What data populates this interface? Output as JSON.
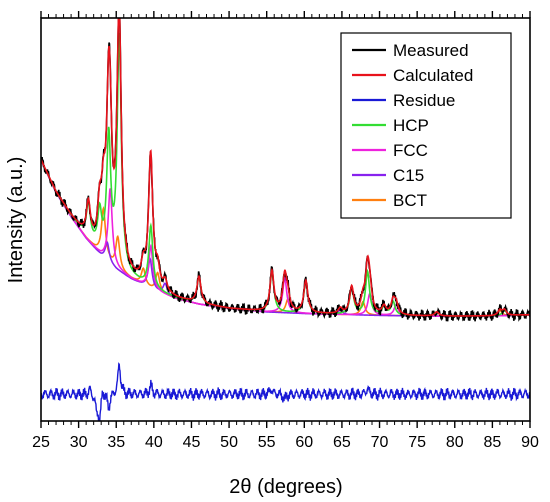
{
  "chart_data": {
    "type": "line",
    "title": "",
    "xlabel": "2θ (degrees)",
    "ylabel": "Intensity (a.u.)",
    "xlim": [
      25,
      90
    ],
    "ylim": [
      -0.35,
      1.15
    ],
    "x_ticks": [
      25,
      30,
      35,
      40,
      45,
      50,
      55,
      60,
      65,
      70,
      75,
      80,
      85,
      90
    ],
    "y_tick_labels_shown": false,
    "grid": false,
    "legend_position": "top-right",
    "legend_items": [
      {
        "name": "Measured",
        "color": "#000000"
      },
      {
        "name": "Calculated",
        "color": "#e8121b"
      },
      {
        "name": "Residue",
        "color": "#1a1ad6"
      },
      {
        "name": "HCP",
        "color": "#33dd33"
      },
      {
        "name": "FCC",
        "color": "#ee22dd"
      },
      {
        "name": "C15",
        "color": "#8822ee"
      },
      {
        "name": "BCT",
        "color": "#ff7f10"
      }
    ],
    "background": {
      "points": [
        [
          25,
          0.62
        ],
        [
          27,
          0.5
        ],
        [
          29,
          0.41
        ],
        [
          31,
          0.33
        ],
        [
          33,
          0.265
        ],
        [
          35,
          0.215
        ],
        [
          37,
          0.178
        ],
        [
          40,
          0.135
        ],
        [
          43,
          0.105
        ],
        [
          46,
          0.085
        ],
        [
          50,
          0.068
        ],
        [
          55,
          0.056
        ],
        [
          60,
          0.05
        ],
        [
          65,
          0.046
        ],
        [
          70,
          0.043
        ],
        [
          75,
          0.041
        ],
        [
          80,
          0.04
        ],
        [
          85,
          0.041
        ],
        [
          90,
          0.045
        ]
      ]
    },
    "peaks": {
      "HCP": [
        [
          31.3,
          0.13
        ],
        [
          32.8,
          0.14
        ],
        [
          34.0,
          0.45
        ],
        [
          35.4,
          0.86
        ],
        [
          39.6,
          0.23
        ],
        [
          46.0,
          0.1
        ],
        [
          55.7,
          0.15
        ],
        [
          60.2,
          0.12
        ],
        [
          66.3,
          0.1
        ],
        [
          68.4,
          0.16
        ],
        [
          70.6,
          0.03
        ],
        [
          71.8,
          0.05
        ],
        [
          77.6,
          0.015
        ],
        [
          86.6,
          0.02
        ]
      ],
      "FCC": [
        [
          34.2,
          0.28
        ],
        [
          39.6,
          0.16
        ],
        [
          57.4,
          0.13
        ],
        [
          68.7,
          0.08
        ],
        [
          72.2,
          0.04
        ]
      ],
      "C15": [
        [
          33.8,
          0.07
        ],
        [
          39.5,
          0.11
        ],
        [
          41.5,
          0.04
        ],
        [
          64.8,
          0.02
        ]
      ],
      "BCT": [
        [
          33.3,
          0.18
        ],
        [
          35.2,
          0.12
        ],
        [
          38.6,
          0.06
        ],
        [
          40.5,
          0.07
        ],
        [
          57.8,
          0.05
        ],
        [
          67.8,
          0.05
        ],
        [
          86.0,
          0.02
        ]
      ]
    },
    "residue_offset": -0.25,
    "residue_features": [
      [
        31.5,
        0.02
      ],
      [
        32.4,
        -0.05
      ],
      [
        32.8,
        -0.09
      ],
      [
        33.2,
        0.03
      ],
      [
        34.0,
        -0.05
      ],
      [
        35.4,
        0.11
      ],
      [
        39.6,
        0.03
      ],
      [
        55.6,
        0.02
      ],
      [
        57.4,
        -0.02
      ],
      [
        68.4,
        0.02
      ]
    ]
  }
}
